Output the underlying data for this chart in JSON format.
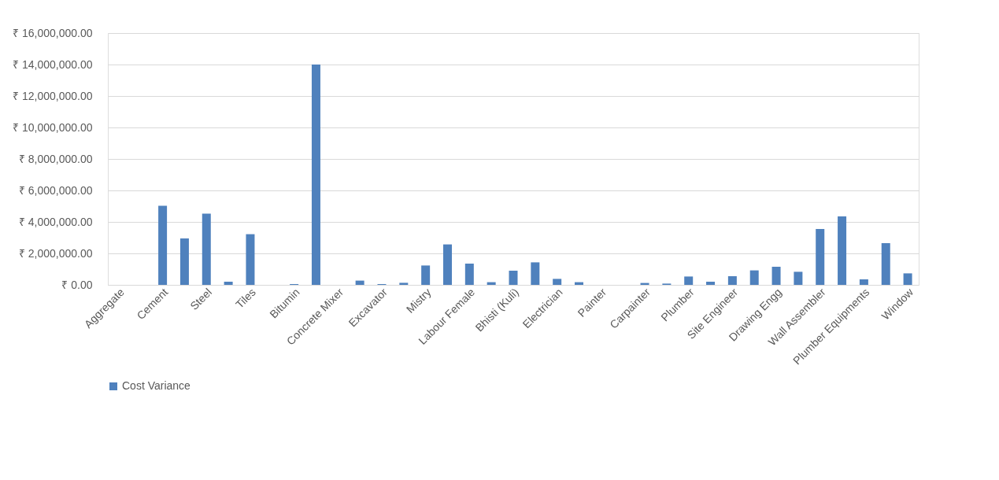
{
  "chart_data": {
    "type": "bar",
    "categories": [
      "Aggregate",
      null,
      "Cement",
      null,
      "Steel",
      null,
      "Tiles",
      null,
      "Bitumin",
      null,
      "Concrete Mixer",
      null,
      "Excavator",
      null,
      "Mistry",
      null,
      "Labour Female",
      null,
      "Bhisti (Kuli)",
      null,
      "Electrician",
      null,
      "Painter",
      null,
      "Carpainter",
      null,
      "Plumber",
      null,
      "Site Engineer",
      null,
      "Drawing Engg",
      null,
      "Wall Assembler",
      null,
      "Plumber Equipments",
      null,
      "Window"
    ],
    "series": [
      {
        "name": "Cost Variance",
        "color": "#4f81bd",
        "values": [
          0,
          0,
          5020000,
          2950000,
          4520000,
          200000,
          3220000,
          0,
          50000,
          14000000,
          0,
          270000,
          50000,
          130000,
          1230000,
          2570000,
          1350000,
          170000,
          900000,
          1430000,
          380000,
          170000,
          0,
          0,
          120000,
          80000,
          530000,
          200000,
          550000,
          920000,
          1150000,
          830000,
          3550000,
          4350000,
          350000,
          2650000,
          730000
        ]
      }
    ],
    "ylim": [
      0,
      16000000
    ],
    "yticks": [
      {
        "value": 0,
        "label": "₹ 0.00"
      },
      {
        "value": 2000000,
        "label": "₹ 2,000,000.00"
      },
      {
        "value": 4000000,
        "label": "₹ 4,000,000.00"
      },
      {
        "value": 6000000,
        "label": "₹ 6,000,000.00"
      },
      {
        "value": 8000000,
        "label": "₹ 8,000,000.00"
      },
      {
        "value": 10000000,
        "label": "₹ 10,000,000.00"
      },
      {
        "value": 12000000,
        "label": "₹ 12,000,000.00"
      },
      {
        "value": 14000000,
        "label": "₹ 14,000,000.00"
      },
      {
        "value": 16000000,
        "label": "₹ 16,000,000.00"
      }
    ],
    "grid": "y",
    "legend": "bottom"
  }
}
